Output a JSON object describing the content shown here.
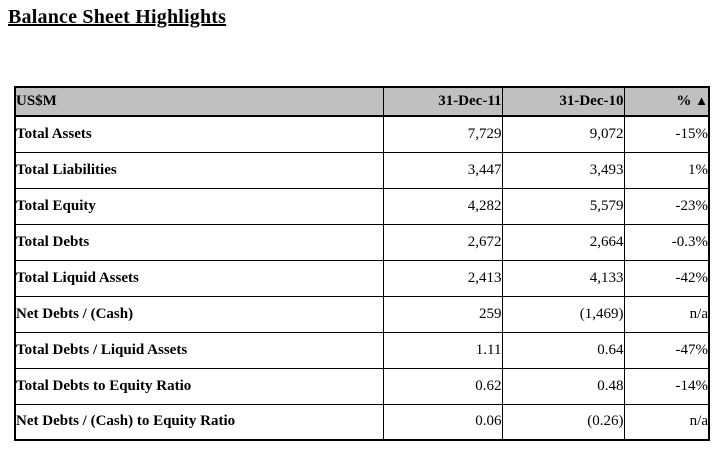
{
  "page": {
    "title": "Balance Sheet Highlights"
  },
  "colors": {
    "header_bg": "#c0c0c0",
    "border": "#000000",
    "page_bg": "#ffffff"
  },
  "table": {
    "header": {
      "col0": "US$M",
      "col1": "31-Dec-11",
      "col2": "31-Dec-10",
      "col3_pct": "%",
      "triangle": "▲"
    },
    "rows": [
      {
        "label": "Total Assets",
        "dec11": "7,729",
        "dec10": "9,072",
        "pct": "-15%"
      },
      {
        "label": "Total Liabilities",
        "dec11": "3,447",
        "dec10": "3,493",
        "pct": "1%"
      },
      {
        "label": "Total Equity",
        "dec11": "4,282",
        "dec10": "5,579",
        "pct": "-23%"
      },
      {
        "label": "Total Debts",
        "dec11": "2,672",
        "dec10": "2,664",
        "pct": "-0.3%"
      },
      {
        "label": "Total Liquid Assets",
        "dec11": "2,413",
        "dec10": "4,133",
        "pct": "-42%"
      },
      {
        "label": "Net Debts / (Cash)",
        "dec11": "259",
        "dec10": "(1,469)",
        "pct": "n/a"
      },
      {
        "label": "Total Debts / Liquid Assets",
        "dec11": "1.11",
        "dec10": "0.64",
        "pct": "-47%"
      },
      {
        "label": "Total Debts to Equity Ratio",
        "dec11": "0.62",
        "dec10": "0.48",
        "pct": "-14%"
      },
      {
        "label": "Net Debts / (Cash) to Equity Ratio",
        "dec11": "0.06",
        "dec10": "(0.26)",
        "pct": "n/a"
      }
    ]
  }
}
